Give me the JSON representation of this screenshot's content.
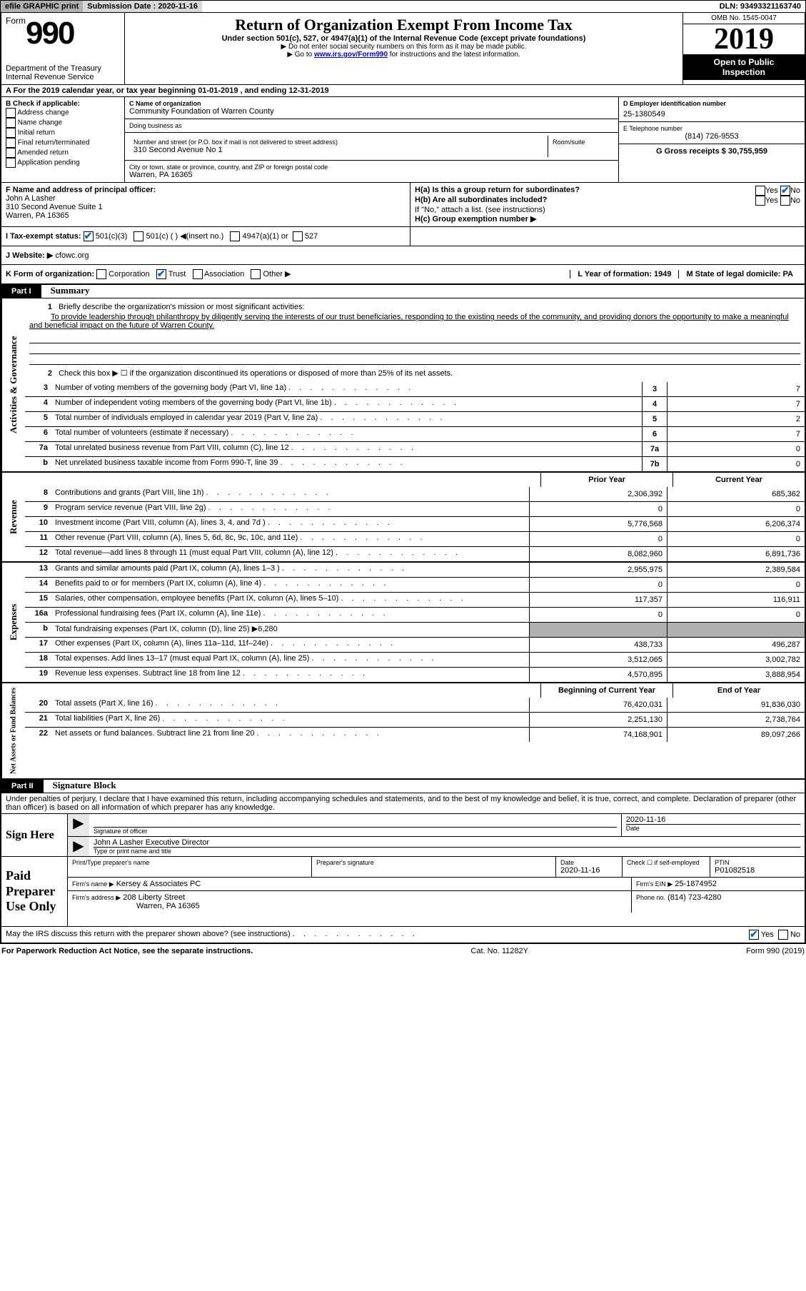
{
  "topbar": {
    "efile": "efile GRAPHIC print",
    "submission_label": "Submission Date : 2020-11-16",
    "dln": "DLN: 93493321163740"
  },
  "header": {
    "form_word": "Form",
    "form_number": "990",
    "title": "Return of Organization Exempt From Income Tax",
    "subtitle": "Under section 501(c), 527, or 4947(a)(1) of the Internal Revenue Code (except private foundations)",
    "instr1": "▶ Do not enter social security numbers on this form as it may be made public.",
    "instr2_pre": "▶ Go to ",
    "instr2_link": "www.irs.gov/Form990",
    "instr2_post": " for instructions and the latest information.",
    "dept1": "Department of the Treasury",
    "dept2": "Internal Revenue Service",
    "omb": "OMB No. 1545-0047",
    "year": "2019",
    "open1": "Open to Public",
    "open2": "Inspection"
  },
  "sectionA": "A For the 2019 calendar year, or tax year beginning 01-01-2019   , and ending 12-31-2019",
  "colB": {
    "label": "B Check if applicable:",
    "items": [
      "Address change",
      "Name change",
      "Initial return",
      "Final return/terminated",
      "Amended return",
      "Application pending"
    ]
  },
  "colC": {
    "name_label": "C Name of organization",
    "name": "Community Foundation of Warren County",
    "dba_label": "Doing business as",
    "dba": "",
    "addr_label": "Number and street (or P.O. box if mail is not delivered to street address)",
    "room_label": "Room/suite",
    "addr": "310 Second Avenue No 1",
    "city_label": "City or town, state or province, country, and ZIP or foreign postal code",
    "city": "Warren, PA  16365"
  },
  "colDE": {
    "d_label": "D Employer identification number",
    "ein": "25-1380549",
    "e_label": "E Telephone number",
    "phone": "(814) 726-9553",
    "g_label": "G Gross receipts $ 30,755,959"
  },
  "rowF": {
    "label": "F  Name and address of principal officer:",
    "name": "John A Lasher",
    "addr1": "310 Second Avenue Suite 1",
    "addr2": "Warren, PA  16365"
  },
  "rowH": {
    "ha": "H(a)  Is this a group return for subordinates?",
    "hb": "H(b)  Are all subordinates included?",
    "hb_note": "If \"No,\" attach a list. (see instructions)",
    "hc": "H(c)  Group exemption number ▶",
    "yes": "Yes",
    "no": "No"
  },
  "rowI": {
    "label": "I  Tax-exempt status:",
    "opts": [
      "501(c)(3)",
      "501(c) (  ) ◀(insert no.)",
      "4947(a)(1) or",
      "527"
    ]
  },
  "rowJ": {
    "label": "J  Website: ▶",
    "value": " cfowc.org"
  },
  "rowK": {
    "label": "K Form of organization:",
    "opts": [
      "Corporation",
      "Trust",
      "Association",
      "Other ▶"
    ],
    "l": "L Year of formation: 1949",
    "m": "M State of legal domicile: PA"
  },
  "part1": {
    "header": "Part I",
    "title": "Summary",
    "line1_label": "Briefly describe the organization's mission or most significant activities:",
    "mission": "To provide leadership through philanthropy by diligently serving the interests of our trust beneficiaries, responding to the existing needs of the community, and providing donors the opportunity to make a meaningful and beneficial impact on the future of Warren County.",
    "line2": "Check this box ▶ ☐ if the organization discontinued its operations or disposed of more than 25% of its net assets.",
    "gov_lines": [
      {
        "n": "3",
        "d": "Number of voting members of the governing body (Part VI, line 1a)",
        "box": "3",
        "v": "7"
      },
      {
        "n": "4",
        "d": "Number of independent voting members of the governing body (Part VI, line 1b)",
        "box": "4",
        "v": "7"
      },
      {
        "n": "5",
        "d": "Total number of individuals employed in calendar year 2019 (Part V, line 2a)",
        "box": "5",
        "v": "2"
      },
      {
        "n": "6",
        "d": "Total number of volunteers (estimate if necessary)",
        "box": "6",
        "v": "7"
      },
      {
        "n": "7a",
        "d": "Total unrelated business revenue from Part VIII, column (C), line 12",
        "box": "7a",
        "v": "0"
      },
      {
        "n": "b",
        "d": "Net unrelated business taxable income from Form 990-T, line 39",
        "box": "7b",
        "v": "0"
      }
    ],
    "col_prior": "Prior Year",
    "col_current": "Current Year",
    "rev_lines": [
      {
        "n": "8",
        "d": "Contributions and grants (Part VIII, line 1h)",
        "p": "2,306,392",
        "c": "685,362"
      },
      {
        "n": "9",
        "d": "Program service revenue (Part VIII, line 2g)",
        "p": "0",
        "c": "0"
      },
      {
        "n": "10",
        "d": "Investment income (Part VIII, column (A), lines 3, 4, and 7d )",
        "p": "5,776,568",
        "c": "6,206,374"
      },
      {
        "n": "11",
        "d": "Other revenue (Part VIII, column (A), lines 5, 6d, 8c, 9c, 10c, and 11e)",
        "p": "0",
        "c": "0"
      },
      {
        "n": "12",
        "d": "Total revenue—add lines 8 through 11 (must equal Part VIII, column (A), line 12)",
        "p": "8,082,960",
        "c": "6,891,736"
      }
    ],
    "exp_lines": [
      {
        "n": "13",
        "d": "Grants and similar amounts paid (Part IX, column (A), lines 1–3 )",
        "p": "2,955,975",
        "c": "2,389,584"
      },
      {
        "n": "14",
        "d": "Benefits paid to or for members (Part IX, column (A), line 4)",
        "p": "0",
        "c": "0"
      },
      {
        "n": "15",
        "d": "Salaries, other compensation, employee benefits (Part IX, column (A), lines 5–10)",
        "p": "117,357",
        "c": "116,911"
      },
      {
        "n": "16a",
        "d": "Professional fundraising fees (Part IX, column (A), line 11e)",
        "p": "0",
        "c": "0"
      },
      {
        "n": "b",
        "d": "Total fundraising expenses (Part IX, column (D), line 25) ▶6,280",
        "p": "",
        "c": "",
        "shaded": true
      },
      {
        "n": "17",
        "d": "Other expenses (Part IX, column (A), lines 11a–11d, 11f–24e)",
        "p": "438,733",
        "c": "496,287"
      },
      {
        "n": "18",
        "d": "Total expenses. Add lines 13–17 (must equal Part IX, column (A), line 25)",
        "p": "3,512,065",
        "c": "3,002,782"
      },
      {
        "n": "19",
        "d": "Revenue less expenses. Subtract line 18 from line 12",
        "p": "4,570,895",
        "c": "3,888,954"
      }
    ],
    "col_begin": "Beginning of Current Year",
    "col_end": "End of Year",
    "net_lines": [
      {
        "n": "20",
        "d": "Total assets (Part X, line 16)",
        "p": "76,420,031",
        "c": "91,836,030"
      },
      {
        "n": "21",
        "d": "Total liabilities (Part X, line 26)",
        "p": "2,251,130",
        "c": "2,738,764"
      },
      {
        "n": "22",
        "d": "Net assets or fund balances. Subtract line 21 from line 20",
        "p": "74,168,901",
        "c": "89,097,266"
      }
    ],
    "vtabs": {
      "gov": "Activities & Governance",
      "rev": "Revenue",
      "exp": "Expenses",
      "net": "Net Assets or Fund Balances"
    }
  },
  "part2": {
    "header": "Part II",
    "title": "Signature Block",
    "penalty": "Under penalties of perjury, I declare that I have examined this return, including accompanying schedules and statements, and to the best of my knowledge and belief, it is true, correct, and complete. Declaration of preparer (other than officer) is based on all information of which preparer has any knowledge.",
    "sign_here": "Sign Here",
    "sig_officer_label": "Signature of officer",
    "sig_date": "2020-11-16",
    "date_label": "Date",
    "officer_name": "John A Lasher  Executive Director",
    "officer_label": "Type or print name and title",
    "paid": "Paid Preparer Use Only",
    "prep_name_label": "Print/Type preparer's name",
    "prep_sig_label": "Preparer's signature",
    "prep_date": "2020-11-16",
    "check_self": "Check ☐ if self-employed",
    "ptin_label": "PTIN",
    "ptin": "P01082518",
    "firm_name_label": "Firm's name    ▶",
    "firm_name": "Kersey & Associates PC",
    "firm_ein_label": "Firm's EIN ▶",
    "firm_ein": "25-1874952",
    "firm_addr_label": "Firm's address ▶",
    "firm_addr1": "208 Liberty Street",
    "firm_addr2": "Warren, PA  16365",
    "firm_phone_label": "Phone no.",
    "firm_phone": "(814) 723-4280",
    "discuss": "May the IRS discuss this return with the preparer shown above? (see instructions)"
  },
  "footer": {
    "left": "For Paperwork Reduction Act Notice, see the separate instructions.",
    "center": "Cat. No. 11282Y",
    "right": "Form 990 (2019)"
  }
}
